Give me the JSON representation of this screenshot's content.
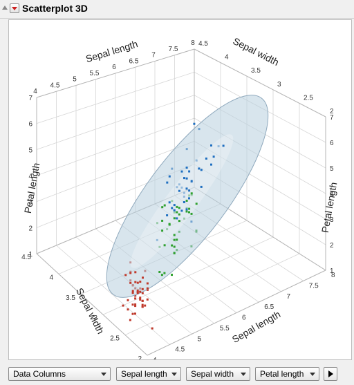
{
  "window": {
    "title": "Scatterplot 3D"
  },
  "controls": {
    "columns_dropdown": "Data Columns",
    "x_dropdown": "Sepal length",
    "y_dropdown": "Sepal width",
    "z_dropdown": "Petal length"
  },
  "colors": {
    "setosa": "#c0392b",
    "versicolor": "#2ea02e",
    "virginica": "#1f6fc0",
    "ellipsoid": "#b8cfdf"
  },
  "axes": {
    "petal_left": {
      "label": "Petal length",
      "ticks": [
        "1",
        "2",
        "3",
        "4",
        "5",
        "6",
        "7"
      ]
    },
    "petal_right": {
      "label": "Petal length",
      "ticks": [
        "1",
        "2",
        "3",
        "4",
        "5",
        "6",
        "7"
      ]
    },
    "sepal_length_top": {
      "label": "Sepal length",
      "ticks": [
        "4",
        "4.5",
        "5",
        "5.5",
        "6",
        "6.5",
        "7",
        "7.5",
        "8"
      ]
    },
    "sepal_width_top": {
      "label": "Sepal width",
      "ticks": [
        "2",
        "2.5",
        "3",
        "3.5",
        "4",
        "4.5"
      ]
    },
    "sepal_width_bottom": {
      "label": "Sepal width",
      "ticks": [
        "2",
        "2.5",
        "3",
        "3.5",
        "4",
        "4.5"
      ]
    },
    "sepal_length_bottom": {
      "label": "Sepal length",
      "ticks": [
        "4",
        "4.5",
        "5",
        "5.5",
        "6",
        "6.5",
        "7",
        "7.5",
        "8"
      ]
    }
  },
  "chart_data": {
    "type": "scatter",
    "x_label": "Sepal length",
    "y_label": "Sepal width",
    "z_label": "Petal length",
    "xlim": [
      4,
      8
    ],
    "ylim": [
      2,
      4.5
    ],
    "zlim": [
      1,
      7
    ],
    "series": [
      {
        "color": "#c0392b",
        "points": [
          [
            5.1,
            3.5,
            1.4
          ],
          [
            4.9,
            3.0,
            1.4
          ],
          [
            4.7,
            3.2,
            1.3
          ],
          [
            4.6,
            3.1,
            1.5
          ],
          [
            5.0,
            3.6,
            1.4
          ],
          [
            5.4,
            3.9,
            1.7
          ],
          [
            4.6,
            3.4,
            1.4
          ],
          [
            5.0,
            3.4,
            1.5
          ],
          [
            4.4,
            2.9,
            1.4
          ],
          [
            4.9,
            3.1,
            1.5
          ],
          [
            5.4,
            3.7,
            1.5
          ],
          [
            4.8,
            3.4,
            1.6
          ],
          [
            4.8,
            3.0,
            1.4
          ],
          [
            4.3,
            3.0,
            1.1
          ],
          [
            5.8,
            4.0,
            1.2
          ],
          [
            5.7,
            4.4,
            1.5
          ],
          [
            5.4,
            3.9,
            1.3
          ],
          [
            5.1,
            3.5,
            1.4
          ],
          [
            5.7,
            3.8,
            1.7
          ],
          [
            5.1,
            3.8,
            1.5
          ],
          [
            5.4,
            3.4,
            1.7
          ],
          [
            5.1,
            3.7,
            1.5
          ],
          [
            4.6,
            3.6,
            1.0
          ],
          [
            5.1,
            3.3,
            1.7
          ],
          [
            4.8,
            3.4,
            1.9
          ],
          [
            5.0,
            3.0,
            1.6
          ],
          [
            5.0,
            3.4,
            1.6
          ],
          [
            5.2,
            3.5,
            1.5
          ],
          [
            5.2,
            3.4,
            1.4
          ],
          [
            4.7,
            3.2,
            1.6
          ],
          [
            4.8,
            3.1,
            1.6
          ],
          [
            5.4,
            3.4,
            1.5
          ],
          [
            5.2,
            4.1,
            1.5
          ],
          [
            5.5,
            4.2,
            1.4
          ],
          [
            4.9,
            3.1,
            1.5
          ],
          [
            5.0,
            3.2,
            1.2
          ],
          [
            5.5,
            3.5,
            1.3
          ],
          [
            4.4,
            3.0,
            1.3
          ],
          [
            5.1,
            3.4,
            1.5
          ],
          [
            5.0,
            3.5,
            1.3
          ],
          [
            4.5,
            2.3,
            1.3
          ],
          [
            4.4,
            3.2,
            1.3
          ],
          [
            5.0,
            3.5,
            1.6
          ],
          [
            5.1,
            3.8,
            1.9
          ],
          [
            4.8,
            3.0,
            1.4
          ],
          [
            5.1,
            3.8,
            1.6
          ],
          [
            4.6,
            3.2,
            1.4
          ],
          [
            5.3,
            3.7,
            1.5
          ],
          [
            5.0,
            3.3,
            1.4
          ]
        ]
      },
      {
        "color": "#2ea02e",
        "points": [
          [
            7.0,
            3.2,
            4.7
          ],
          [
            6.4,
            3.2,
            4.5
          ],
          [
            6.9,
            3.1,
            4.9
          ],
          [
            5.5,
            2.3,
            4.0
          ],
          [
            6.5,
            2.8,
            4.6
          ],
          [
            5.7,
            2.8,
            4.5
          ],
          [
            6.3,
            3.3,
            4.7
          ],
          [
            4.9,
            2.4,
            3.3
          ],
          [
            6.6,
            2.9,
            4.6
          ],
          [
            5.2,
            2.7,
            3.9
          ],
          [
            5.0,
            2.0,
            3.5
          ],
          [
            5.9,
            3.0,
            4.2
          ],
          [
            6.0,
            2.2,
            4.0
          ],
          [
            6.1,
            2.9,
            4.7
          ],
          [
            5.6,
            2.9,
            3.6
          ],
          [
            6.7,
            3.1,
            4.4
          ],
          [
            5.6,
            3.0,
            4.5
          ],
          [
            5.8,
            2.7,
            4.1
          ],
          [
            6.2,
            2.2,
            4.5
          ],
          [
            5.6,
            2.5,
            3.9
          ],
          [
            5.9,
            3.2,
            4.8
          ],
          [
            6.1,
            2.8,
            4.0
          ],
          [
            6.3,
            2.5,
            4.9
          ],
          [
            6.1,
            2.8,
            4.7
          ],
          [
            6.4,
            2.9,
            4.3
          ],
          [
            6.6,
            3.0,
            4.4
          ],
          [
            6.8,
            2.8,
            4.8
          ],
          [
            6.7,
            3.0,
            5.0
          ],
          [
            6.0,
            2.9,
            4.5
          ],
          [
            5.7,
            2.6,
            3.5
          ],
          [
            5.5,
            2.4,
            3.8
          ],
          [
            5.8,
            2.7,
            3.9
          ],
          [
            6.0,
            2.7,
            5.1
          ],
          [
            5.4,
            3.0,
            4.5
          ],
          [
            6.0,
            3.4,
            4.5
          ],
          [
            6.7,
            3.1,
            4.7
          ],
          [
            6.3,
            2.3,
            4.4
          ],
          [
            5.6,
            3.0,
            4.1
          ],
          [
            5.5,
            2.5,
            4.0
          ],
          [
            6.1,
            3.0,
            4.6
          ],
          [
            5.8,
            2.6,
            4.0
          ],
          [
            5.0,
            2.3,
            3.3
          ],
          [
            5.7,
            2.9,
            4.2
          ],
          [
            6.2,
            2.9,
            4.3
          ],
          [
            5.1,
            2.5,
            3.0
          ]
        ]
      },
      {
        "color": "#1f6fc0",
        "points": [
          [
            6.3,
            3.3,
            6.0
          ],
          [
            5.8,
            2.7,
            5.1
          ],
          [
            7.1,
            3.0,
            5.9
          ],
          [
            6.3,
            2.9,
            5.6
          ],
          [
            6.5,
            3.0,
            5.8
          ],
          [
            7.6,
            3.0,
            6.6
          ],
          [
            4.9,
            2.5,
            4.5
          ],
          [
            7.3,
            2.9,
            6.3
          ],
          [
            6.7,
            2.5,
            5.8
          ],
          [
            7.2,
            3.6,
            6.1
          ],
          [
            6.5,
            3.2,
            5.1
          ],
          [
            6.4,
            2.7,
            5.3
          ],
          [
            6.8,
            3.0,
            5.5
          ],
          [
            5.7,
            2.5,
            5.0
          ],
          [
            5.8,
            2.8,
            5.1
          ],
          [
            6.4,
            3.2,
            5.3
          ],
          [
            7.7,
            3.8,
            6.7
          ],
          [
            7.7,
            2.6,
            6.9
          ],
          [
            6.0,
            2.2,
            5.0
          ],
          [
            6.9,
            3.2,
            5.7
          ],
          [
            5.6,
            2.8,
            4.9
          ],
          [
            7.7,
            2.8,
            6.7
          ],
          [
            6.3,
            2.7,
            4.9
          ],
          [
            6.7,
            3.3,
            5.7
          ],
          [
            7.2,
            3.2,
            6.0
          ],
          [
            6.2,
            2.8,
            4.8
          ],
          [
            6.1,
            3.0,
            4.9
          ],
          [
            6.4,
            2.8,
            5.6
          ],
          [
            7.2,
            3.0,
            5.8
          ],
          [
            7.4,
            2.8,
            6.1
          ],
          [
            7.9,
            3.8,
            6.4
          ],
          [
            6.4,
            2.8,
            5.6
          ],
          [
            6.3,
            2.8,
            5.1
          ],
          [
            6.1,
            2.6,
            5.6
          ],
          [
            7.7,
            3.0,
            6.1
          ],
          [
            6.3,
            3.4,
            5.6
          ],
          [
            6.4,
            3.1,
            5.5
          ],
          [
            6.9,
            3.1,
            5.4
          ],
          [
            6.7,
            3.1,
            5.6
          ],
          [
            5.8,
            2.7,
            5.1
          ],
          [
            6.8,
            3.2,
            5.9
          ],
          [
            6.7,
            3.0,
            5.2
          ],
          [
            6.5,
            3.0,
            5.2
          ],
          [
            6.2,
            3.4,
            5.4
          ],
          [
            5.9,
            3.0,
            5.1
          ]
        ]
      }
    ]
  }
}
